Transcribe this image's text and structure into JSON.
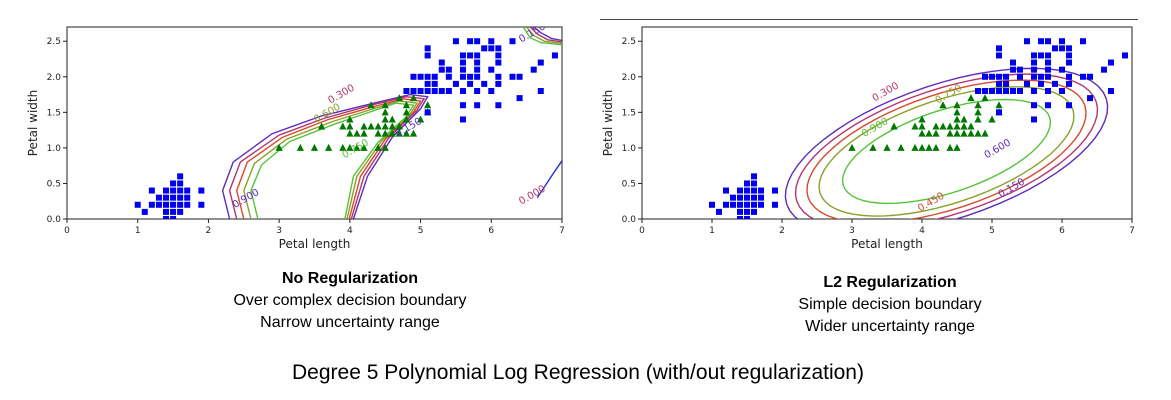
{
  "figure_title": "Degree 5 Polynomial Log Regression (with/out regularization)",
  "panels": [
    {
      "title": "No Regularization",
      "line1": "Over complex decision boundary",
      "line2": "Narrow uncertainty range"
    },
    {
      "title": "L2 Regularization",
      "line1": "Simple decision boundary",
      "line2": "Wider uncertainty range"
    }
  ],
  "colors": {
    "setosa": "#0000ee",
    "versicolor": "#007700",
    "contours": [
      "#5b2dbd",
      "#b5336e",
      "#d64a2b",
      "#8aa12a",
      "#56c23a"
    ]
  },
  "chart_data": [
    {
      "type": "scatter",
      "xlabel": "Petal length",
      "ylabel": "Petal width",
      "xlim": [
        0,
        7
      ],
      "ylim": [
        0,
        2.7
      ],
      "xticks": [
        0,
        1,
        2,
        3,
        4,
        5,
        6,
        7
      ],
      "yticks": [
        0.0,
        0.5,
        1.0,
        1.5,
        2.0,
        2.5
      ],
      "series": [
        {
          "marker": "square",
          "color": "#0000ee",
          "x": [
            1.0,
            1.1,
            1.2,
            1.3,
            1.4,
            1.5,
            1.6,
            1.7,
            1.9,
            1.3,
            1.4,
            1.5,
            1.6,
            1.7,
            1.2,
            1.4,
            1.5,
            1.6,
            1.7,
            1.4,
            1.5,
            1.6,
            1.9,
            1.5,
            1.6,
            1.6,
            1.4,
            1.5
          ],
          "y": [
            0.2,
            0.1,
            0.2,
            0.2,
            0.2,
            0.2,
            0.2,
            0.2,
            0.2,
            0.3,
            0.3,
            0.3,
            0.3,
            0.3,
            0.4,
            0.4,
            0.4,
            0.4,
            0.4,
            0.1,
            0.1,
            0.1,
            0.4,
            0.5,
            0.5,
            0.6,
            0.0,
            0.0
          ]
        },
        {
          "marker": "triangle",
          "color": "#007700",
          "x": [
            3.0,
            3.3,
            3.5,
            3.7,
            3.9,
            4.0,
            4.1,
            4.2,
            4.4,
            4.5,
            3.6,
            3.9,
            4.0,
            4.2,
            4.3,
            4.4,
            4.5,
            4.6,
            4.7,
            4.0,
            4.1,
            4.2,
            4.4,
            4.5,
            4.6,
            4.7,
            4.8,
            4.9,
            4.0,
            4.5,
            4.6,
            4.8,
            5.0,
            4.5,
            4.8,
            5.1,
            4.3,
            4.5,
            4.8,
            4.7,
            4.9,
            5.1
          ],
          "y": [
            1.0,
            1.0,
            1.0,
            1.0,
            1.0,
            1.0,
            1.0,
            1.0,
            1.0,
            1.0,
            1.3,
            1.3,
            1.3,
            1.3,
            1.3,
            1.3,
            1.3,
            1.3,
            1.3,
            1.2,
            1.2,
            1.2,
            1.2,
            1.2,
            1.2,
            1.2,
            1.2,
            1.2,
            1.4,
            1.4,
            1.4,
            1.4,
            1.4,
            1.5,
            1.5,
            1.5,
            1.6,
            1.6,
            1.6,
            1.7,
            1.7,
            1.6
          ]
        },
        {
          "marker": "square",
          "color": "#0000ee",
          "x": [
            4.8,
            4.9,
            5.0,
            5.1,
            5.2,
            5.3,
            5.4,
            5.6,
            5.8,
            6.0,
            4.9,
            5.0,
            5.1,
            5.2,
            5.4,
            5.6,
            5.7,
            5.8,
            6.1,
            6.3,
            5.1,
            5.2,
            5.5,
            5.7,
            5.9,
            6.1,
            6.7,
            6.9,
            5.3,
            5.4,
            5.6,
            5.8,
            6.0,
            6.6,
            5.1,
            5.6,
            5.7,
            5.8,
            6.1,
            5.9,
            6.0,
            6.1,
            5.1,
            5.3,
            5.6,
            5.8,
            6.1,
            5.5,
            5.8,
            6.3,
            5.6,
            5.8,
            6.1,
            6.4,
            6.7,
            5.7,
            6.0,
            6.4,
            5.6,
            5.1
          ],
          "y": [
            1.8,
            1.8,
            1.8,
            1.8,
            1.8,
            1.8,
            1.8,
            1.8,
            1.8,
            1.8,
            2.0,
            2.0,
            2.0,
            2.0,
            2.0,
            2.0,
            2.0,
            2.0,
            2.0,
            2.0,
            1.9,
            1.9,
            1.9,
            1.9,
            1.9,
            1.9,
            2.2,
            2.3,
            2.1,
            2.1,
            2.1,
            2.1,
            2.1,
            2.1,
            2.3,
            2.3,
            2.3,
            2.3,
            2.3,
            2.4,
            2.4,
            2.4,
            2.4,
            2.2,
            2.2,
            2.2,
            2.2,
            2.5,
            2.5,
            2.5,
            1.6,
            1.6,
            1.6,
            1.7,
            1.8,
            2.5,
            2.5,
            2.0,
            1.4,
            1.5
          ]
        }
      ],
      "contour_labels": [
        "0.150",
        "0.300",
        "0.450",
        "0.600",
        "0.750",
        "0.900",
        "0.000"
      ]
    },
    {
      "type": "scatter",
      "xlabel": "Petal length",
      "ylabel": "Petal width",
      "xlim": [
        0,
        7
      ],
      "ylim": [
        0,
        2.7
      ],
      "xticks": [
        0,
        1,
        2,
        3,
        4,
        5,
        6,
        7
      ],
      "yticks": [
        0.0,
        0.5,
        1.0,
        1.5,
        2.0,
        2.5
      ],
      "series": [
        {
          "marker": "square",
          "color": "#0000ee",
          "x": [
            1.0,
            1.1,
            1.2,
            1.3,
            1.4,
            1.5,
            1.6,
            1.7,
            1.9,
            1.3,
            1.4,
            1.5,
            1.6,
            1.7,
            1.2,
            1.4,
            1.5,
            1.6,
            1.7,
            1.4,
            1.5,
            1.6,
            1.9,
            1.5,
            1.6,
            1.6,
            1.4,
            1.5
          ],
          "y": [
            0.2,
            0.1,
            0.2,
            0.2,
            0.2,
            0.2,
            0.2,
            0.2,
            0.2,
            0.3,
            0.3,
            0.3,
            0.3,
            0.3,
            0.4,
            0.4,
            0.4,
            0.4,
            0.4,
            0.1,
            0.1,
            0.1,
            0.4,
            0.5,
            0.5,
            0.6,
            0.0,
            0.0
          ]
        },
        {
          "marker": "triangle",
          "color": "#007700",
          "x": [
            3.0,
            3.3,
            3.5,
            3.7,
            3.9,
            4.0,
            4.1,
            4.2,
            4.4,
            4.5,
            3.6,
            3.9,
            4.0,
            4.2,
            4.3,
            4.4,
            4.5,
            4.6,
            4.7,
            4.0,
            4.1,
            4.2,
            4.4,
            4.5,
            4.6,
            4.7,
            4.8,
            4.9,
            4.0,
            4.5,
            4.6,
            4.8,
            5.0,
            4.5,
            4.8,
            5.1,
            4.3,
            4.5,
            4.8,
            4.7,
            4.9,
            5.1
          ],
          "y": [
            1.0,
            1.0,
            1.0,
            1.0,
            1.0,
            1.0,
            1.0,
            1.0,
            1.0,
            1.0,
            1.3,
            1.3,
            1.3,
            1.3,
            1.3,
            1.3,
            1.3,
            1.3,
            1.3,
            1.2,
            1.2,
            1.2,
            1.2,
            1.2,
            1.2,
            1.2,
            1.2,
            1.2,
            1.4,
            1.4,
            1.4,
            1.4,
            1.4,
            1.5,
            1.5,
            1.5,
            1.6,
            1.6,
            1.6,
            1.7,
            1.7,
            1.6
          ]
        },
        {
          "marker": "square",
          "color": "#0000ee",
          "x": [
            4.8,
            4.9,
            5.0,
            5.1,
            5.2,
            5.3,
            5.4,
            5.6,
            5.8,
            6.0,
            4.9,
            5.0,
            5.1,
            5.2,
            5.4,
            5.6,
            5.7,
            5.8,
            6.1,
            6.3,
            5.1,
            5.2,
            5.5,
            5.7,
            5.9,
            6.1,
            6.7,
            6.9,
            5.3,
            5.4,
            5.6,
            5.8,
            6.0,
            6.6,
            5.1,
            5.6,
            5.7,
            5.8,
            6.1,
            5.9,
            6.0,
            6.1,
            5.1,
            5.3,
            5.6,
            5.8,
            6.1,
            5.5,
            5.8,
            6.3,
            5.6,
            5.8,
            6.1,
            6.4,
            6.7,
            5.7,
            6.0,
            6.4,
            5.6,
            5.1
          ],
          "y": [
            1.8,
            1.8,
            1.8,
            1.8,
            1.8,
            1.8,
            1.8,
            1.8,
            1.8,
            1.8,
            2.0,
            2.0,
            2.0,
            2.0,
            2.0,
            2.0,
            2.0,
            2.0,
            2.0,
            2.0,
            1.9,
            1.9,
            1.9,
            1.9,
            1.9,
            1.9,
            2.2,
            2.3,
            2.1,
            2.1,
            2.1,
            2.1,
            2.1,
            2.1,
            2.3,
            2.3,
            2.3,
            2.3,
            2.3,
            2.4,
            2.4,
            2.4,
            2.4,
            2.2,
            2.2,
            2.2,
            2.2,
            2.5,
            2.5,
            2.5,
            1.6,
            1.6,
            1.6,
            1.7,
            1.8,
            2.5,
            2.5,
            2.0,
            1.4,
            1.5
          ]
        }
      ],
      "contour_labels": [
        "0.150",
        "0.300",
        "0.450",
        "0.750",
        "0.900",
        "0.600"
      ]
    }
  ]
}
